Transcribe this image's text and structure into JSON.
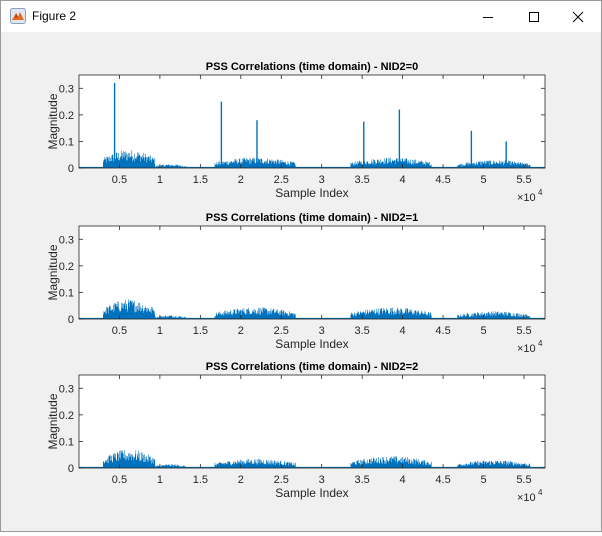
{
  "window": {
    "title": "Figure 2",
    "icons": {
      "app": "matlab-figure-icon",
      "minimize": "minimize-icon",
      "maximize": "maximize-icon",
      "close": "close-icon"
    }
  },
  "chart_data": [
    {
      "type": "line",
      "title": "PSS Correlations (time domain) - NID2=0",
      "xlabel": "Sample Index",
      "ylabel": "Magnitude",
      "x_exponent_label": "×10",
      "x_exponent": "4",
      "xlim": [
        0,
        57600
      ],
      "ylim": [
        0,
        0.35
      ],
      "xticks": [
        5000,
        10000,
        15000,
        20000,
        25000,
        30000,
        35000,
        40000,
        45000,
        50000,
        55000
      ],
      "xtick_labels": [
        "0.5",
        "1",
        "1.5",
        "2",
        "2.5",
        "3",
        "3.5",
        "4",
        "4.5",
        "5",
        "5.5"
      ],
      "yticks": [
        0,
        0.1,
        0.2,
        0.3
      ],
      "ytick_labels": [
        "0",
        "0.1",
        "0.2",
        "0.3"
      ],
      "line_color": "#0072BD",
      "noise_blocks": [
        {
          "x": [
            3000,
            9400
          ],
          "ymax": 0.07
        },
        {
          "x": [
            9400,
            13200
          ],
          "ymax": 0.015
        },
        {
          "x": [
            16800,
            26800
          ],
          "ymax": 0.04
        },
        {
          "x": [
            33600,
            43600
          ],
          "ymax": 0.04
        },
        {
          "x": [
            46800,
            55800
          ],
          "ymax": 0.03
        }
      ],
      "peaks": [
        {
          "x": 4400,
          "y": 0.32
        },
        {
          "x": 17600,
          "y": 0.25
        },
        {
          "x": 22000,
          "y": 0.18
        },
        {
          "x": 35200,
          "y": 0.175
        },
        {
          "x": 39600,
          "y": 0.22
        },
        {
          "x": 48500,
          "y": 0.14
        },
        {
          "x": 52800,
          "y": 0.1
        }
      ]
    },
    {
      "type": "line",
      "title": "PSS Correlations (time domain) - NID2=1",
      "xlabel": "Sample Index",
      "ylabel": "Magnitude",
      "x_exponent_label": "×10",
      "x_exponent": "4",
      "xlim": [
        0,
        57600
      ],
      "ylim": [
        0,
        0.35
      ],
      "xticks": [
        5000,
        10000,
        15000,
        20000,
        25000,
        30000,
        35000,
        40000,
        45000,
        50000,
        55000
      ],
      "xtick_labels": [
        "0.5",
        "1",
        "1.5",
        "2",
        "2.5",
        "3",
        "3.5",
        "4",
        "4.5",
        "5",
        "5.5"
      ],
      "yticks": [
        0,
        0.1,
        0.2,
        0.3
      ],
      "ytick_labels": [
        "0",
        "0.1",
        "0.2",
        "0.3"
      ],
      "line_color": "#0072BD",
      "noise_blocks": [
        {
          "x": [
            3000,
            9400
          ],
          "ymax": 0.075
        },
        {
          "x": [
            9400,
            13200
          ],
          "ymax": 0.015
        },
        {
          "x": [
            16800,
            26800
          ],
          "ymax": 0.045
        },
        {
          "x": [
            33600,
            43600
          ],
          "ymax": 0.045
        },
        {
          "x": [
            46800,
            55800
          ],
          "ymax": 0.03
        }
      ],
      "peaks": []
    },
    {
      "type": "line",
      "title": "PSS Correlations (time domain) - NID2=2",
      "xlabel": "Sample Index",
      "ylabel": "Magnitude",
      "x_exponent_label": "×10",
      "x_exponent": "4",
      "xlim": [
        0,
        57600
      ],
      "ylim": [
        0,
        0.35
      ],
      "xticks": [
        5000,
        10000,
        15000,
        20000,
        25000,
        30000,
        35000,
        40000,
        45000,
        50000,
        55000
      ],
      "xtick_labels": [
        "0.5",
        "1",
        "1.5",
        "2",
        "2.5",
        "3",
        "3.5",
        "4",
        "4.5",
        "5",
        "5.5"
      ],
      "yticks": [
        0,
        0.1,
        0.2,
        0.3
      ],
      "ytick_labels": [
        "0",
        "0.1",
        "0.2",
        "0.3"
      ],
      "line_color": "#0072BD",
      "noise_blocks": [
        {
          "x": [
            3000,
            9400
          ],
          "ymax": 0.07
        },
        {
          "x": [
            9400,
            13200
          ],
          "ymax": 0.015
        },
        {
          "x": [
            16800,
            26800
          ],
          "ymax": 0.035
        },
        {
          "x": [
            33600,
            43600
          ],
          "ymax": 0.045
        },
        {
          "x": [
            46800,
            55800
          ],
          "ymax": 0.03
        }
      ],
      "peaks": []
    }
  ]
}
